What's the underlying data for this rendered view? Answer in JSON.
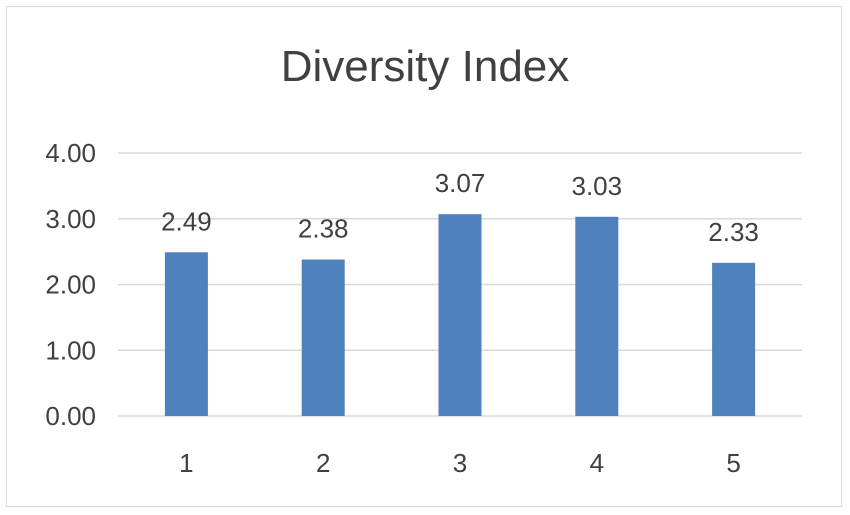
{
  "colors": {
    "bar": "#4f81bd",
    "grid": "#d9d9d9",
    "text": "#404040"
  },
  "chart_data": {
    "type": "bar",
    "title": "Diversity Index",
    "xlabel": "",
    "ylabel": "",
    "categories": [
      "1",
      "2",
      "3",
      "4",
      "5"
    ],
    "values": [
      2.49,
      2.38,
      3.07,
      3.03,
      2.33
    ],
    "data_labels": [
      "2.49",
      "2.38",
      "3.07",
      "3.03",
      "2.33"
    ],
    "ylim": [
      0,
      4
    ],
    "yticks": [
      "0.00",
      "1.00",
      "2.00",
      "3.00",
      "4.00"
    ],
    "grid": true,
    "legend": "none"
  }
}
